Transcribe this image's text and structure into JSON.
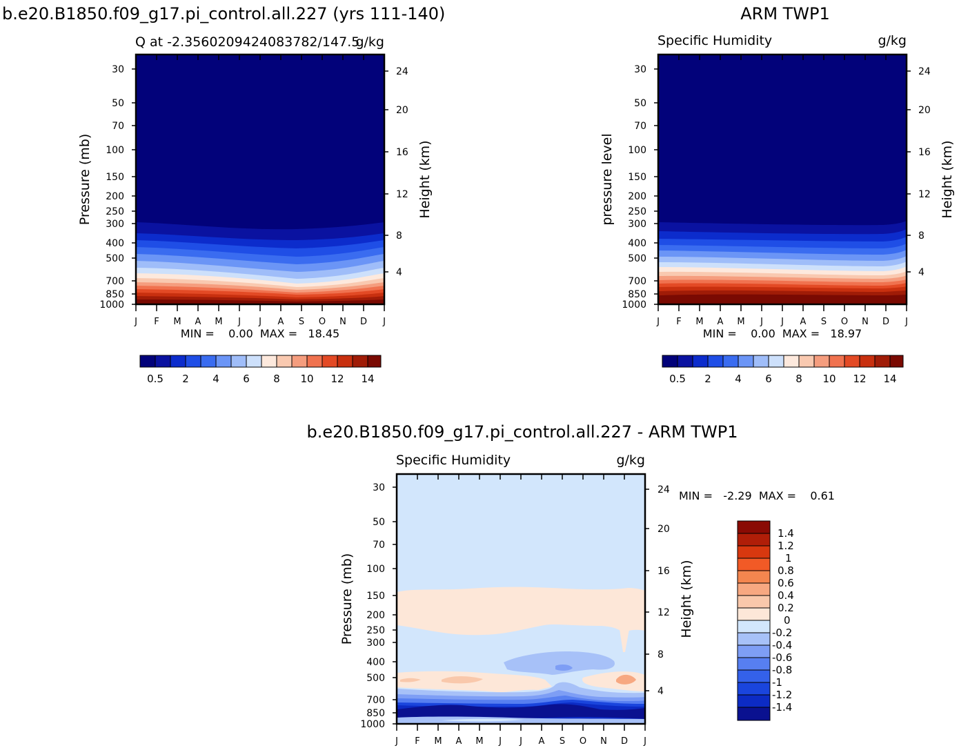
{
  "figure": {
    "left_title": "b.e20.B1850.f09_g17.pi_control.all.227 (yrs 111-140)",
    "right_title": "ARM TWP1",
    "diff_title": "b.e20.B1850.f09_g17.pi_control.all.227 - ARM TWP1"
  },
  "colors": {
    "abs_scale": [
      "#02027a",
      "#0a12a0",
      "#0c2ccc",
      "#1f4ee6",
      "#3a6cf0",
      "#6b95f6",
      "#9fbdf9",
      "#cde0fb",
      "#fde9dd",
      "#f9c9b0",
      "#f59d7e",
      "#f0724f",
      "#e34a25",
      "#c8300f",
      "#a01c07",
      "#7a0a02"
    ],
    "diff_scale": [
      "#0a1190",
      "#0c2bc4",
      "#1a45dd",
      "#3461ea",
      "#577ff1",
      "#7e9ef5",
      "#a7c1f8",
      "#d2e6fc",
      "#fde7d8",
      "#f9c8ab",
      "#f7a881",
      "#f4864f",
      "#f25a26",
      "#d8380f",
      "#b01e08",
      "#8a0b04"
    ]
  },
  "chart_data": [
    {
      "type": "heatmap",
      "panel": "model",
      "subtitle_left": "Q at -2.3560209424083782/147.5",
      "subtitle_right": "g/kg",
      "xlabel": "",
      "ylabel": "Pressure (mb)",
      "ylabel_right": "Height (km)",
      "x_ticks": [
        "J",
        "F",
        "M",
        "A",
        "M",
        "J",
        "J",
        "A",
        "S",
        "O",
        "N",
        "D",
        "J"
      ],
      "y_ticks": [
        30,
        50,
        70,
        100,
        150,
        200,
        250,
        300,
        400,
        500,
        700,
        850,
        1000
      ],
      "y_ticks_right": [
        24,
        20,
        16,
        12,
        8,
        4
      ],
      "yscale": "log",
      "ylim": [
        1000,
        25
      ],
      "stats": "MIN =    0.00  MAX =   18.45",
      "min": 0.0,
      "max": 18.45,
      "colorbar_labels": [
        "0.5",
        "2",
        "4",
        "6",
        "8",
        "10",
        "12",
        "14"
      ],
      "colorbar_levels": [
        0.5,
        1,
        2,
        3,
        4,
        5,
        6,
        7,
        8,
        9,
        10,
        11,
        12,
        13,
        14
      ],
      "moisture_top_hpa": [
        305,
        312,
        318,
        323,
        326,
        328,
        328,
        330,
        332,
        330,
        324,
        316,
        305
      ],
      "surface_q_gkg": [
        16.5,
        16.8,
        17.0,
        17.2,
        17.6,
        18.0,
        18.2,
        18.45,
        18.3,
        18.0,
        17.4,
        16.8,
        16.5
      ]
    },
    {
      "type": "heatmap",
      "panel": "obs",
      "subtitle_left": "Specific Humidity",
      "subtitle_right": "g/kg",
      "xlabel": "",
      "ylabel": "pressure level",
      "ylabel_right": "Height (km)",
      "x_ticks": [
        "J",
        "F",
        "M",
        "A",
        "M",
        "J",
        "J",
        "A",
        "S",
        "O",
        "N",
        "D",
        "J"
      ],
      "y_ticks": [
        30,
        50,
        70,
        100,
        150,
        200,
        250,
        300,
        400,
        500,
        700,
        850,
        1000
      ],
      "y_ticks_right": [
        24,
        20,
        16,
        12,
        8,
        4
      ],
      "yscale": "log",
      "ylim": [
        1000,
        25
      ],
      "stats": "MIN =    0.00  MAX =   18.97",
      "min": 0.0,
      "max": 18.97,
      "colorbar_labels": [
        "0.5",
        "2",
        "4",
        "6",
        "8",
        "10",
        "12",
        "14"
      ],
      "colorbar_levels": [
        0.5,
        1,
        2,
        3,
        4,
        5,
        6,
        7,
        8,
        9,
        10,
        11,
        12,
        13,
        14
      ],
      "moisture_top_hpa": [
        300,
        302,
        305,
        307,
        308,
        310,
        310,
        310,
        310,
        308,
        305,
        304,
        300
      ],
      "surface_q_gkg": [
        18.2,
        18.4,
        18.6,
        18.8,
        18.97,
        18.9,
        18.7,
        18.5,
        18.4,
        18.5,
        18.6,
        18.4,
        18.2
      ]
    },
    {
      "type": "heatmap",
      "panel": "difference",
      "subtitle_left": "Specific Humidity",
      "subtitle_right": "g/kg",
      "xlabel": "",
      "ylabel": "Pressure (mb)",
      "ylabel_right": "Height (km)",
      "x_ticks": [
        "J",
        "F",
        "M",
        "A",
        "M",
        "J",
        "J",
        "A",
        "S",
        "O",
        "N",
        "D",
        "J"
      ],
      "y_ticks": [
        30,
        50,
        70,
        100,
        150,
        200,
        250,
        300,
        400,
        500,
        700,
        850,
        1000
      ],
      "y_ticks_right": [
        24,
        20,
        16,
        12,
        8,
        4
      ],
      "yscale": "log",
      "ylim": [
        1000,
        25
      ],
      "stats": "MIN =   -2.29  MAX =    0.61",
      "min": -2.29,
      "max": 0.61,
      "colorbar_labels": [
        "1.4",
        "1.2",
        "1",
        "0.8",
        "0.6",
        "0.4",
        "0.2",
        "0",
        "-0.2",
        "-0.4",
        "-0.6",
        "-0.8",
        "-1",
        "-1.2",
        "-1.4"
      ],
      "colorbar_levels": [
        -1.4,
        -1.2,
        -1.0,
        -0.8,
        -0.6,
        -0.4,
        -0.2,
        0,
        0.2,
        0.4,
        0.6,
        0.8,
        1.0,
        1.2,
        1.4
      ],
      "positive_layer_hpa": {
        "top": [
          150,
          150,
          152,
          150,
          145,
          145,
          143,
          145,
          145,
          145,
          148,
          145,
          150
        ],
        "bottom": [
          245,
          250,
          255,
          265,
          270,
          265,
          260,
          255,
          255,
          255,
          255,
          265,
          245
        ]
      },
      "negative_core_months": [
        "J",
        "A",
        "S"
      ],
      "positive_core_months": [
        "M",
        "A",
        "D"
      ]
    }
  ]
}
